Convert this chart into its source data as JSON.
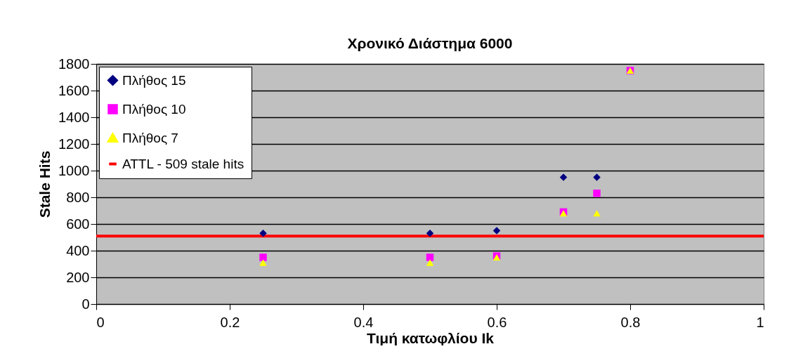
{
  "chart_data": {
    "type": "scatter",
    "title": "Χρονικό Διάστημα 6000",
    "xlabel": "Τιμή κατωφλίου Ik",
    "ylabel": "Stale Hits",
    "x": [
      0.25,
      0.5,
      0.6,
      0.7,
      0.75,
      0.8
    ],
    "series": [
      {
        "name": "Πλήθος 15",
        "color": "#000080",
        "marker": "diamond",
        "values": [
          530,
          530,
          550,
          950,
          950,
          null
        ]
      },
      {
        "name": "Πλήθος 10",
        "color": "#ff00ff",
        "marker": "square",
        "values": [
          350,
          350,
          360,
          690,
          830,
          1750
        ]
      },
      {
        "name": "Πλήθος 7",
        "color": "#ffff00",
        "marker": "triangle",
        "values": [
          310,
          310,
          350,
          680,
          680,
          1750
        ]
      }
    ],
    "ref_lines": [
      {
        "axis": "y",
        "value": 509,
        "label": "ATTL - 509 stale hits",
        "color": "#ff0000"
      }
    ],
    "xlim": [
      0,
      1
    ],
    "xticks": [
      0,
      0.2,
      0.4,
      0.6,
      0.8,
      1
    ],
    "ylim": [
      0,
      1800
    ],
    "yticks": [
      0,
      200,
      400,
      600,
      800,
      1000,
      1200,
      1400,
      1600,
      1800
    ],
    "grid": "y",
    "legend": "top left"
  }
}
